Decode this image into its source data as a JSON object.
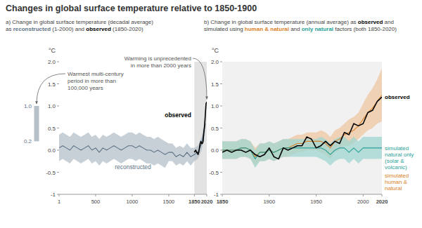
{
  "title": "Changes in global surface temperature relative to 1850-1900",
  "chart_data": [
    {
      "type": "line",
      "title": [
        [
          "a) Change in global surface temperature (decadal average)"
        ],
        [
          "as ",
          {
            "text": "reconstructed",
            "color": "#5d7286"
          },
          " (1-2000) and ",
          {
            "text": "observed",
            "color": "#000000"
          },
          " (1850-2020)"
        ]
      ],
      "ylabel": "°C",
      "xlim": [
        1,
        2020
      ],
      "xticks": [
        1,
        500,
        1000,
        1500,
        1850,
        2020
      ],
      "ylim": [
        -1,
        2
      ],
      "yticks": [
        -1,
        -0.5,
        {
          "value": 0,
          "label": "0.0"
        },
        0.5,
        {
          "value": 1,
          "label": "1.0"
        },
        1.5,
        {
          "value": 2,
          "label": "2.0"
        }
      ],
      "grid": false,
      "shaded_x": [
        1850,
        2020
      ],
      "series": [
        {
          "name": "reconstructed",
          "color": "#5d7286",
          "x": [
            1,
            50,
            100,
            150,
            200,
            250,
            300,
            350,
            400,
            450,
            500,
            550,
            600,
            650,
            700,
            750,
            800,
            850,
            900,
            950,
            1000,
            1050,
            1100,
            1150,
            1200,
            1250,
            1300,
            1350,
            1400,
            1450,
            1500,
            1550,
            1600,
            1650,
            1700,
            1750,
            1800,
            1850,
            1900,
            1950,
            2000
          ],
          "values": [
            0.05,
            0.1,
            0.05,
            0,
            0.1,
            0.05,
            0,
            0.05,
            0.1,
            0,
            0.05,
            -0.05,
            0.05,
            0,
            0.05,
            0.1,
            0.05,
            0,
            0.05,
            0.1,
            0.1,
            0.05,
            0.1,
            0.05,
            0,
            0,
            -0.05,
            0,
            -0.05,
            -0.1,
            -0.05,
            -0.05,
            -0.15,
            -0.1,
            -0.15,
            -0.05,
            -0.15,
            -0.1,
            -0.05,
            0.15,
            0.6
          ],
          "upper": [
            0.35,
            0.4,
            0.35,
            0.3,
            0.4,
            0.35,
            0.3,
            0.35,
            0.4,
            0.3,
            0.35,
            0.25,
            0.35,
            0.3,
            0.35,
            0.4,
            0.35,
            0.3,
            0.35,
            0.4,
            0.4,
            0.35,
            0.4,
            0.35,
            0.3,
            0.3,
            0.25,
            0.3,
            0.25,
            0.2,
            0.15,
            0.15,
            0.05,
            0.1,
            0.05,
            0.15,
            0.05,
            0.05,
            0.1,
            0.3,
            0.75
          ],
          "lower": [
            -0.25,
            -0.2,
            -0.25,
            -0.3,
            -0.2,
            -0.25,
            -0.3,
            -0.25,
            -0.2,
            -0.3,
            -0.25,
            -0.35,
            -0.25,
            -0.3,
            -0.25,
            -0.2,
            -0.25,
            -0.3,
            -0.25,
            -0.2,
            -0.2,
            -0.25,
            -0.2,
            -0.25,
            -0.3,
            -0.3,
            -0.35,
            -0.3,
            -0.35,
            -0.4,
            -0.25,
            -0.25,
            -0.35,
            -0.3,
            -0.35,
            -0.25,
            -0.35,
            -0.25,
            -0.2,
            0,
            0.45
          ]
        },
        {
          "name": "observed",
          "color": "#000000",
          "x": [
            1850,
            1860,
            1870,
            1880,
            1890,
            1900,
            1910,
            1920,
            1930,
            1940,
            1950,
            1960,
            1970,
            1980,
            1990,
            2000,
            2010,
            2020
          ],
          "values": [
            -0.05,
            -0.02,
            0,
            -0.05,
            -0.05,
            -0.1,
            -0.05,
            0.05,
            0.15,
            0.2,
            0.15,
            0.15,
            0.2,
            0.4,
            0.55,
            0.8,
            1.05,
            1.09
          ]
        }
      ],
      "annotations": [
        {
          "text": "Warmest multi-century period in more than 100,000 years",
          "values": [
            0.2,
            1.0
          ],
          "value_labels": [
            "0.2",
            "1.0"
          ]
        },
        {
          "text": "Warming is unprecedented in more than 2000 years"
        }
      ]
    },
    {
      "type": "line",
      "title": [
        [
          "b) Change in global surface temperature (annual average) as ",
          {
            "text": "observed",
            "color": "#000000"
          },
          " and"
        ],
        [
          "simulated using ",
          {
            "text": "human & natural",
            "color": "#d9822b"
          },
          " and ",
          {
            "text": "only natural",
            "color": "#2aa198"
          },
          " factors (both 1850-2020)"
        ]
      ],
      "ylabel": "°C",
      "xlim": [
        1850,
        2020
      ],
      "xticks": [
        1850,
        1900,
        1950,
        2000,
        2020
      ],
      "ylim": [
        -1,
        2
      ],
      "yticks": [
        -1,
        -0.5,
        {
          "value": 0,
          "label": "0.0"
        },
        0.5,
        {
          "value": 1,
          "label": "1.0"
        },
        1.5,
        {
          "value": 2,
          "label": "2.0"
        }
      ],
      "grid": false,
      "x": [
        1850,
        1855,
        1860,
        1865,
        1870,
        1875,
        1880,
        1885,
        1890,
        1895,
        1900,
        1905,
        1910,
        1915,
        1920,
        1925,
        1930,
        1935,
        1940,
        1945,
        1950,
        1955,
        1960,
        1965,
        1970,
        1975,
        1980,
        1985,
        1990,
        1995,
        2000,
        2005,
        2010,
        2015,
        2020
      ],
      "series": [
        {
          "name": "simulated human & natural",
          "color": "#d9822b",
          "values": [
            0,
            0,
            0,
            0,
            0.05,
            0.05,
            0,
            -0.15,
            -0.05,
            -0.05,
            0,
            -0.05,
            0,
            0.05,
            0.05,
            0.1,
            0.15,
            0.15,
            0.2,
            0.2,
            0.2,
            0.2,
            0.15,
            0.05,
            0.2,
            0.25,
            0.35,
            0.4,
            0.45,
            0.55,
            0.7,
            0.85,
            0.95,
            1.1,
            1.25
          ],
          "upper": [
            0.2,
            0.2,
            0.2,
            0.2,
            0.25,
            0.25,
            0.2,
            0.05,
            0.15,
            0.15,
            0.2,
            0.15,
            0.2,
            0.25,
            0.25,
            0.3,
            0.35,
            0.35,
            0.4,
            0.4,
            0.4,
            0.45,
            0.4,
            0.3,
            0.45,
            0.5,
            0.6,
            0.7,
            0.75,
            0.85,
            1.05,
            1.25,
            1.4,
            1.6,
            1.85
          ],
          "lower": [
            -0.2,
            -0.2,
            -0.2,
            -0.2,
            -0.15,
            -0.15,
            -0.2,
            -0.35,
            -0.25,
            -0.25,
            -0.2,
            -0.25,
            -0.2,
            -0.15,
            -0.15,
            -0.1,
            -0.05,
            -0.05,
            0,
            0,
            0,
            -0.05,
            -0.1,
            -0.2,
            -0.05,
            0,
            0.1,
            0.1,
            0.15,
            0.25,
            0.35,
            0.45,
            0.5,
            0.6,
            0.65
          ]
        },
        {
          "name": "simulated natural only (solar & volcanic)",
          "color": "#2aa198",
          "values": [
            0,
            0,
            0,
            0,
            0.05,
            0.05,
            0,
            -0.2,
            -0.05,
            -0.05,
            0,
            -0.05,
            0,
            0.05,
            0.05,
            0.05,
            0.05,
            0.05,
            0.05,
            0.05,
            0.05,
            0.05,
            0,
            -0.1,
            0,
            0.05,
            0.05,
            -0.05,
            0.05,
            -0.05,
            0.05,
            0.05,
            0.05,
            0.05,
            0.05
          ],
          "upper": [
            0.2,
            0.2,
            0.2,
            0.2,
            0.25,
            0.25,
            0.2,
            0,
            0.15,
            0.15,
            0.2,
            0.15,
            0.2,
            0.25,
            0.25,
            0.25,
            0.25,
            0.25,
            0.25,
            0.25,
            0.25,
            0.3,
            0.25,
            0.15,
            0.25,
            0.3,
            0.3,
            0.2,
            0.3,
            0.2,
            0.3,
            0.3,
            0.3,
            0.3,
            0.3
          ],
          "lower": [
            -0.2,
            -0.2,
            -0.2,
            -0.2,
            -0.15,
            -0.15,
            -0.2,
            -0.4,
            -0.25,
            -0.25,
            -0.2,
            -0.25,
            -0.2,
            -0.15,
            -0.15,
            -0.15,
            -0.15,
            -0.15,
            -0.15,
            -0.15,
            -0.15,
            -0.2,
            -0.25,
            -0.35,
            -0.25,
            -0.2,
            -0.2,
            -0.3,
            -0.2,
            -0.3,
            -0.2,
            -0.2,
            -0.2,
            -0.2,
            -0.2
          ]
        },
        {
          "name": "observed",
          "color": "#000000",
          "values": [
            -0.05,
            0,
            -0.05,
            0,
            0,
            -0.05,
            0,
            -0.1,
            -0.15,
            -0.1,
            0.05,
            -0.15,
            -0.2,
            0.05,
            0,
            0.05,
            0.1,
            0.1,
            0.3,
            0.25,
            0.05,
            0.1,
            0.2,
            0.1,
            0.2,
            0.15,
            0.4,
            0.35,
            0.6,
            0.55,
            0.6,
            0.85,
            0.9,
            1.1,
            1.2
          ]
        }
      ]
    }
  ]
}
